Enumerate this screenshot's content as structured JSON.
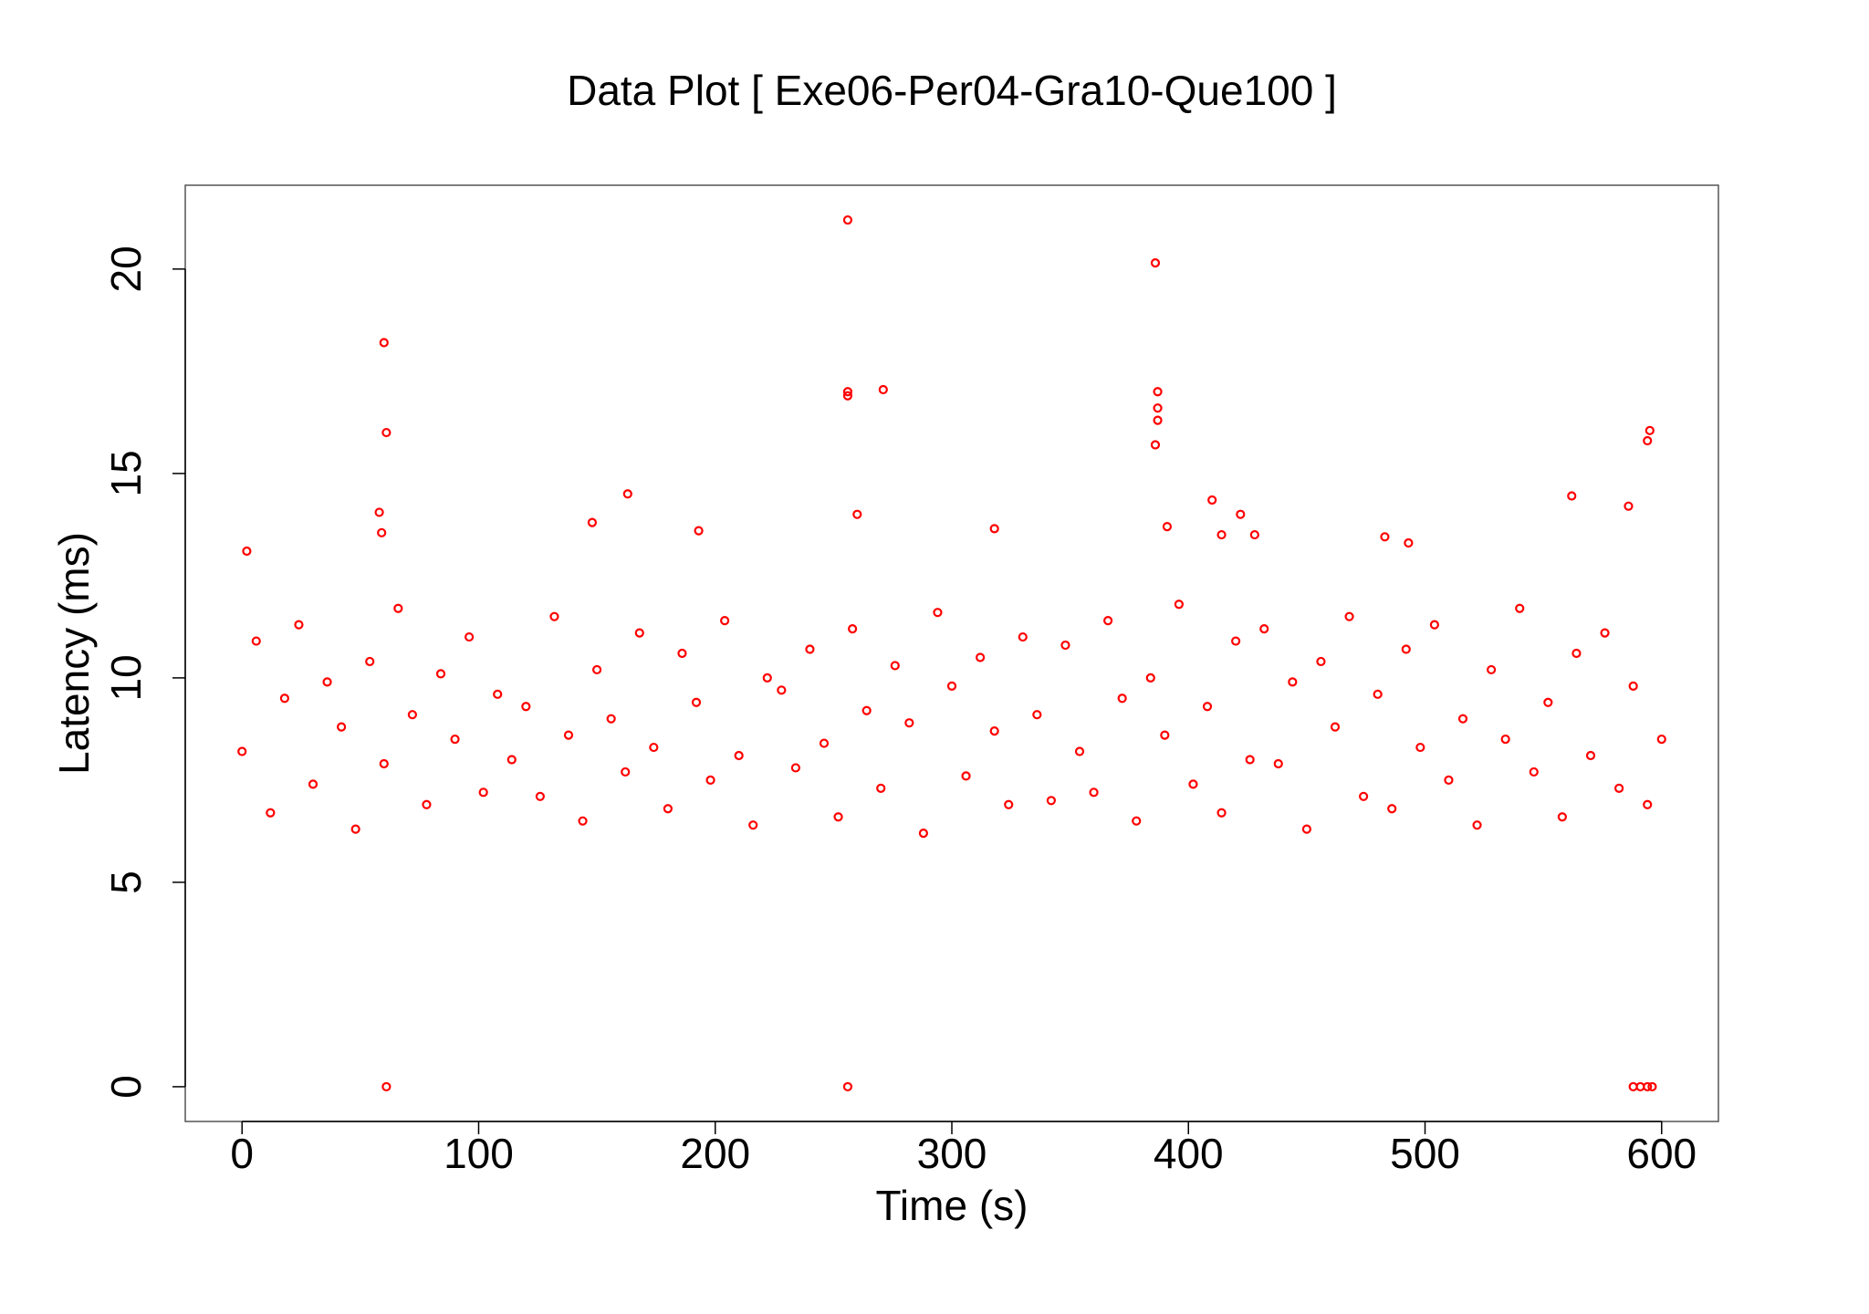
{
  "chart_data": {
    "type": "scatter",
    "title": "Data Plot [ Exe06-Per04-Gra10-Que100 ]",
    "x_label": "Time (s)",
    "y_label": "Latency (ms)",
    "color": "#ff0000",
    "xlim": [
      -24,
      624
    ],
    "ylim": [
      -0.85,
      22.05
    ],
    "xticks": [
      0,
      100,
      200,
      300,
      400,
      500,
      600
    ],
    "yticks": [
      0,
      5,
      10,
      15,
      20
    ],
    "x": [
      0,
      6,
      12,
      18,
      24,
      30,
      36,
      42,
      48,
      54,
      60,
      66,
      72,
      78,
      84,
      90,
      96,
      102,
      108,
      114,
      120,
      126,
      132,
      138,
      144,
      150,
      156,
      162,
      168,
      174,
      180,
      186,
      192,
      198,
      204,
      210,
      216,
      222,
      228,
      234,
      240,
      246,
      252,
      258,
      264,
      270,
      276,
      282,
      288,
      294,
      300,
      306,
      312,
      318,
      324,
      330,
      336,
      342,
      348,
      354,
      360,
      366,
      372,
      378,
      384,
      390,
      396,
      402,
      408,
      414,
      420,
      426,
      432,
      438,
      444,
      450,
      456,
      462,
      468,
      474,
      480,
      486,
      492,
      498,
      504,
      510,
      516,
      522,
      528,
      534,
      540,
      546,
      552,
      558,
      564,
      570,
      576,
      582,
      588,
      594,
      600,
      60,
      61,
      58,
      59,
      256,
      256,
      256,
      271,
      260,
      386,
      387,
      387,
      387,
      386,
      163,
      410,
      562,
      595,
      594,
      586,
      61,
      256,
      588,
      591,
      594,
      596,
      2,
      148,
      422,
      414,
      428,
      318,
      391,
      193,
      483,
      493
    ],
    "values": [
      8.2,
      10.9,
      6.7,
      9.5,
      11.3,
      7.4,
      9.9,
      8.8,
      6.3,
      10.4,
      7.9,
      11.7,
      9.1,
      6.9,
      10.1,
      8.5,
      11.0,
      7.2,
      9.6,
      8.0,
      9.3,
      7.1,
      11.5,
      8.6,
      6.5,
      10.2,
      9.0,
      7.7,
      11.1,
      8.3,
      6.8,
      10.6,
      9.4,
      7.5,
      11.4,
      8.1,
      6.4,
      10.0,
      9.7,
      7.8,
      10.7,
      8.4,
      6.6,
      11.2,
      9.2,
      7.3,
      10.3,
      8.9,
      6.2,
      11.6,
      9.8,
      7.6,
      10.5,
      8.7,
      6.9,
      11.0,
      9.1,
      7.0,
      10.8,
      8.2,
      7.2,
      11.4,
      9.5,
      6.5,
      10.0,
      8.6,
      11.8,
      7.4,
      9.3,
      6.7,
      10.9,
      8.0,
      11.2,
      7.9,
      9.9,
      6.3,
      10.4,
      8.8,
      11.5,
      7.1,
      9.6,
      6.8,
      10.7,
      8.3,
      11.3,
      7.5,
      9.0,
      6.4,
      10.2,
      8.5,
      11.7,
      7.7,
      9.4,
      6.6,
      10.6,
      8.1,
      11.1,
      7.3,
      9.8,
      6.9,
      8.5,
      18.2,
      16.0,
      14.05,
      13.55,
      21.2,
      17.0,
      16.9,
      17.05,
      14.0,
      20.15,
      17.0,
      16.6,
      16.3,
      15.7,
      14.5,
      14.35,
      14.45,
      16.05,
      15.8,
      14.2,
      0,
      0,
      0,
      0,
      0,
      0,
      13.1,
      13.8,
      14.0,
      13.5,
      13.5,
      13.65,
      13.7,
      13.6,
      13.45,
      13.3
    ]
  }
}
